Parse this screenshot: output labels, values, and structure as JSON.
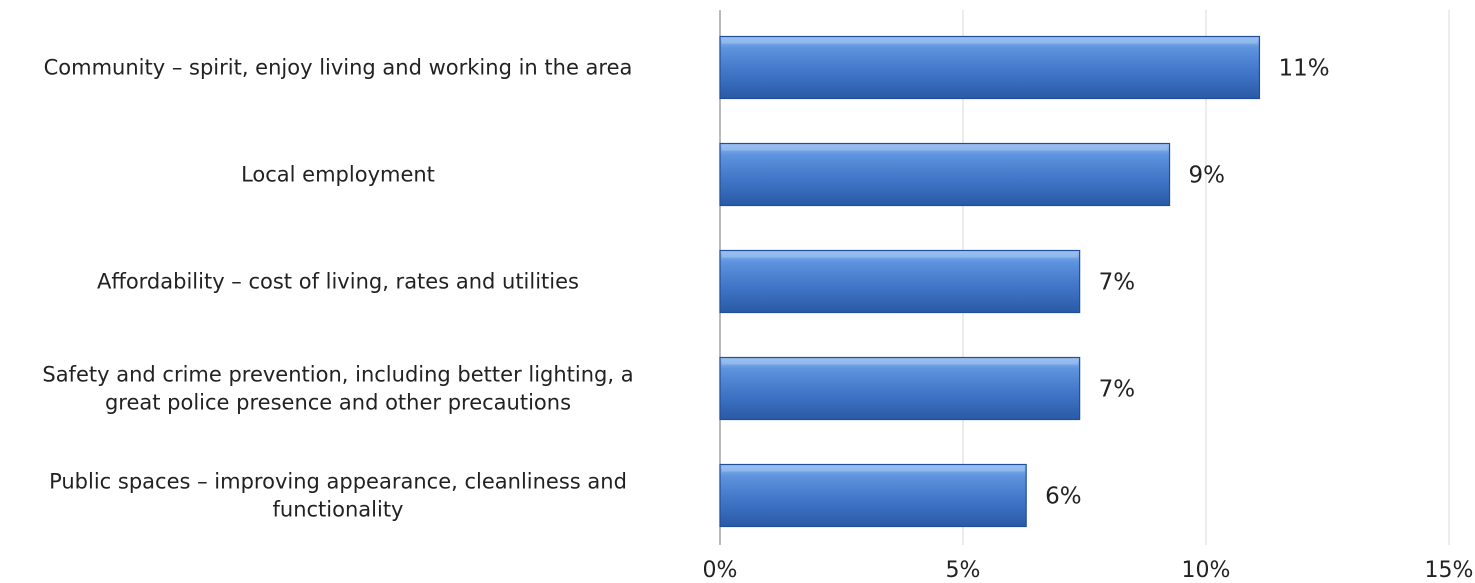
{
  "chart_data": {
    "type": "bar",
    "orientation": "horizontal",
    "title": "",
    "xlabel": "",
    "ylabel": "",
    "xlim": [
      0,
      15
    ],
    "x_ticks": [
      0,
      5,
      10,
      15
    ],
    "x_tick_labels": [
      "0%",
      "5%",
      "10%",
      "15%"
    ],
    "grid": "vertical gridlines",
    "legend": "none",
    "categories": [
      {
        "lines": [
          "Community – spirit, enjoy living and working in the area"
        ]
      },
      {
        "lines": [
          "Local employment"
        ]
      },
      {
        "lines": [
          "Affordability – cost of living, rates and utilities"
        ]
      },
      {
        "lines": [
          "Safety and crime prevention, including better lighting, a",
          "great police presence and other precautions"
        ]
      },
      {
        "lines": [
          "Public spaces – improving appearance, cleanliness and",
          "functionality"
        ]
      }
    ],
    "values": [
      11.1,
      9.25,
      7.4,
      7.4,
      6.3
    ],
    "data_labels": [
      "11%",
      "9%",
      "7%",
      "7%",
      "6%"
    ],
    "colors": {
      "bar": "#4a7fd0",
      "bar_dark": "#1f4f9a",
      "bar_light": "#9fc3f2",
      "grid": "#d9d9d9",
      "axis": "#8c8c8c"
    }
  }
}
